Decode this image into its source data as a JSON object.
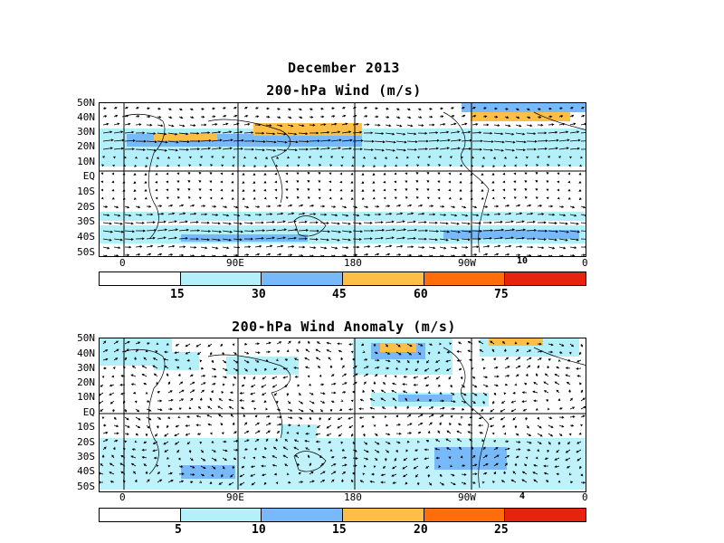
{
  "title": "December 2013",
  "panel1": {
    "title": "200-hPa Wind (m/s)",
    "lat_labels": [
      "50N",
      "40N",
      "30N",
      "20N",
      "10N",
      "EQ",
      "10S",
      "20S",
      "30S",
      "40S",
      "50S"
    ],
    "lon_labels": [
      "0",
      "90E",
      "180",
      "90W",
      "0"
    ],
    "ref_vector_label": "10",
    "colorbar_labels": [
      "15",
      "30",
      "45",
      "60",
      "75"
    ],
    "colorbar_colors": [
      "#ffffff",
      "#b4f0fa",
      "#78b9fa",
      "#ffbe46",
      "#ff6e0a",
      "#e6230f"
    ]
  },
  "panel2": {
    "title": "200-hPa Wind Anomaly (m/s)",
    "lat_labels": [
      "50N",
      "40N",
      "30N",
      "20N",
      "10N",
      "EQ",
      "10S",
      "20S",
      "30S",
      "40S",
      "50S"
    ],
    "lon_labels": [
      "0",
      "90E",
      "180",
      "90W",
      "0"
    ],
    "ref_vector_label": "4",
    "colorbar_labels": [
      "5",
      "10",
      "15",
      "20",
      "25"
    ],
    "colorbar_colors": [
      "#ffffff",
      "#b4f0fa",
      "#78b9fa",
      "#ffbe46",
      "#ff6e0a",
      "#e6230f"
    ]
  }
}
